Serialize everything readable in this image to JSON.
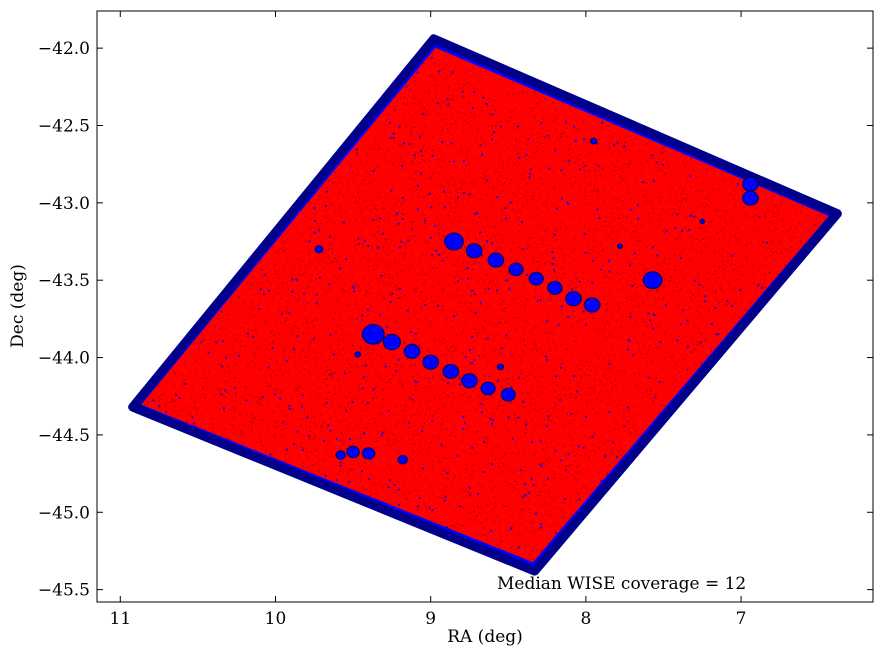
{
  "chart_data": {
    "type": "scatter",
    "title": "",
    "xlabel": "RA (deg)",
    "ylabel": "Dec (deg)",
    "xlim": [
      11.15,
      6.15
    ],
    "ylim": [
      -45.58,
      -41.76
    ],
    "x_inverted": true,
    "xticks": [
      11,
      10,
      9,
      8,
      7
    ],
    "xtick_labels": [
      "11",
      "10",
      "9",
      "8",
      "7"
    ],
    "yticks": [
      -42.0,
      -42.5,
      -43.0,
      -43.5,
      -44.0,
      -44.5,
      -45.0,
      -45.5
    ],
    "ytick_labels": [
      "−42.0",
      "−42.5",
      "−43.0",
      "−43.5",
      "−44.0",
      "−44.5",
      "−45.0",
      "−45.5"
    ],
    "grid": false,
    "annotation": "Median WISE coverage = 12",
    "colors": {
      "above_median": "#ff0000",
      "below_median": "#0000ff",
      "edge": "#000000"
    },
    "footprint": {
      "corners": [
        [
          8.98,
          -41.94
        ],
        [
          6.38,
          -43.07
        ],
        [
          8.33,
          -45.38
        ],
        [
          10.92,
          -44.32
        ]
      ]
    },
    "blobs": [
      {
        "ra": 8.85,
        "dec": -43.25,
        "r": 0.06
      },
      {
        "ra": 8.72,
        "dec": -43.31,
        "r": 0.05
      },
      {
        "ra": 8.58,
        "dec": -43.37,
        "r": 0.05
      },
      {
        "ra": 8.45,
        "dec": -43.43,
        "r": 0.045
      },
      {
        "ra": 8.32,
        "dec": -43.49,
        "r": 0.045
      },
      {
        "ra": 8.2,
        "dec": -43.55,
        "r": 0.045
      },
      {
        "ra": 8.08,
        "dec": -43.62,
        "r": 0.05
      },
      {
        "ra": 7.96,
        "dec": -43.66,
        "r": 0.05
      },
      {
        "ra": 9.37,
        "dec": -43.85,
        "r": 0.07
      },
      {
        "ra": 9.25,
        "dec": -43.9,
        "r": 0.055
      },
      {
        "ra": 9.12,
        "dec": -43.96,
        "r": 0.05
      },
      {
        "ra": 9.0,
        "dec": -44.03,
        "r": 0.05
      },
      {
        "ra": 8.87,
        "dec": -44.09,
        "r": 0.05
      },
      {
        "ra": 8.75,
        "dec": -44.15,
        "r": 0.05
      },
      {
        "ra": 8.63,
        "dec": -44.2,
        "r": 0.045
      },
      {
        "ra": 8.5,
        "dec": -44.24,
        "r": 0.045
      },
      {
        "ra": 7.57,
        "dec": -43.5,
        "r": 0.06
      },
      {
        "ra": 6.94,
        "dec": -42.88,
        "r": 0.05
      },
      {
        "ra": 6.94,
        "dec": -42.97,
        "r": 0.05
      },
      {
        "ra": 9.5,
        "dec": -44.61,
        "r": 0.04
      },
      {
        "ra": 9.4,
        "dec": -44.62,
        "r": 0.04
      },
      {
        "ra": 9.58,
        "dec": -44.63,
        "r": 0.03
      },
      {
        "ra": 9.18,
        "dec": -44.66,
        "r": 0.03
      },
      {
        "ra": 9.72,
        "dec": -43.3,
        "r": 0.025
      },
      {
        "ra": 7.95,
        "dec": -42.6,
        "r": 0.02
      },
      {
        "ra": 7.25,
        "dec": -43.12,
        "r": 0.015
      },
      {
        "ra": 8.55,
        "dec": -44.06,
        "r": 0.02
      },
      {
        "ra": 9.47,
        "dec": -43.98,
        "r": 0.018
      },
      {
        "ra": 7.78,
        "dec": -43.28,
        "r": 0.015
      }
    ]
  }
}
